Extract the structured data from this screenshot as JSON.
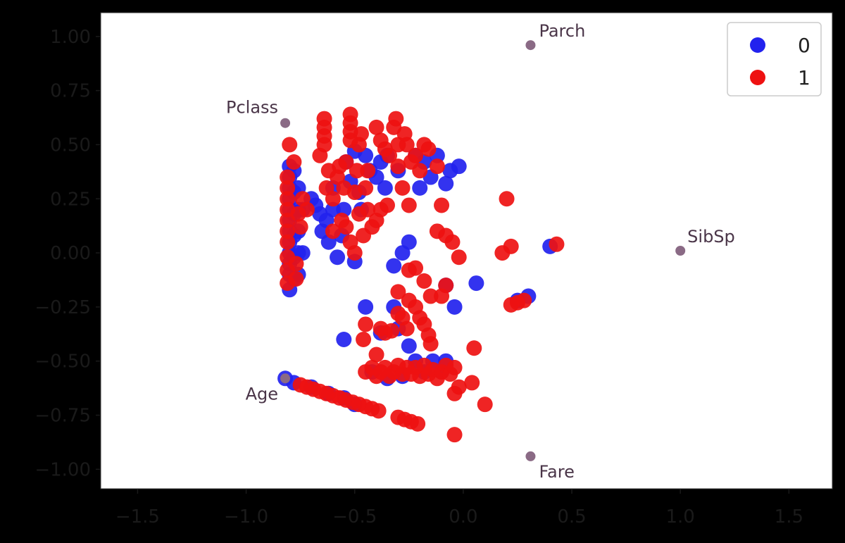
{
  "chart_data": {
    "type": "scatter",
    "title": "",
    "xlabel": "",
    "ylabel": "",
    "xlim": [
      -1.67,
      1.7
    ],
    "ylim": [
      -1.09,
      1.11
    ],
    "xticks": [
      -1.5,
      -1.0,
      -0.5,
      0.0,
      0.5,
      1.0,
      1.5
    ],
    "xtick_labels": [
      "−1.5",
      "−1.0",
      "−0.5",
      "0.0",
      "0.5",
      "1.0",
      "1.5"
    ],
    "yticks": [
      1.0,
      0.75,
      0.5,
      0.25,
      0.0,
      -0.25,
      -0.5,
      -0.75,
      -1.0
    ],
    "ytick_labels": [
      "1.00",
      "0.75",
      "0.50",
      "0.25",
      "0.00",
      "−0.25",
      "−0.50",
      "−0.75",
      "−1.00"
    ],
    "grid": false,
    "legend_position": "top-right",
    "series": [
      {
        "name": "0",
        "color": "#2222ee",
        "points": [
          [
            -0.8,
            0.4
          ],
          [
            -0.8,
            0.35
          ],
          [
            -0.8,
            0.3
          ],
          [
            -0.8,
            0.25
          ],
          [
            -0.8,
            0.2
          ],
          [
            -0.8,
            0.15
          ],
          [
            -0.8,
            0.1
          ],
          [
            -0.8,
            0.05
          ],
          [
            -0.8,
            0.0
          ],
          [
            -0.8,
            -0.05
          ],
          [
            -0.8,
            -0.1
          ],
          [
            -0.8,
            -0.17
          ],
          [
            -0.78,
            0.38
          ],
          [
            -0.78,
            0.28
          ],
          [
            -0.78,
            0.18
          ],
          [
            -0.78,
            0.08
          ],
          [
            -0.78,
            -0.02
          ],
          [
            -0.78,
            -0.12
          ],
          [
            -0.76,
            0.3
          ],
          [
            -0.76,
            0.2
          ],
          [
            -0.76,
            0.1
          ],
          [
            -0.76,
            0.0
          ],
          [
            -0.76,
            -0.1
          ],
          [
            -0.74,
            0.0
          ],
          [
            -0.74,
            0.2
          ],
          [
            -0.7,
            0.25
          ],
          [
            -0.68,
            0.22
          ],
          [
            -0.66,
            0.18
          ],
          [
            -0.65,
            0.1
          ],
          [
            -0.63,
            0.15
          ],
          [
            -0.62,
            0.05
          ],
          [
            -0.6,
            0.2
          ],
          [
            -0.6,
            0.3
          ],
          [
            -0.58,
            -0.02
          ],
          [
            -0.56,
            0.08
          ],
          [
            -0.55,
            0.2
          ],
          [
            -0.54,
            0.42
          ],
          [
            -0.52,
            0.33
          ],
          [
            -0.5,
            -0.04
          ],
          [
            -0.5,
            0.47
          ],
          [
            -0.48,
            0.28
          ],
          [
            -0.47,
            0.2
          ],
          [
            -0.45,
            0.45
          ],
          [
            -0.43,
            0.38
          ],
          [
            -0.4,
            0.35
          ],
          [
            -0.38,
            0.42
          ],
          [
            -0.36,
            0.3
          ],
          [
            -0.35,
            0.45
          ],
          [
            -0.32,
            -0.06
          ],
          [
            -0.3,
            0.38
          ],
          [
            -0.28,
            0.0
          ],
          [
            -0.25,
            0.05
          ],
          [
            -0.22,
            0.45
          ],
          [
            -0.2,
            0.3
          ],
          [
            -0.18,
            0.42
          ],
          [
            -0.15,
            0.35
          ],
          [
            -0.12,
            0.45
          ],
          [
            -0.08,
            0.32
          ],
          [
            -0.06,
            0.38
          ],
          [
            -0.02,
            0.4
          ],
          [
            -0.08,
            -0.15
          ],
          [
            -0.04,
            -0.25
          ],
          [
            0.06,
            -0.14
          ],
          [
            0.25,
            -0.22
          ],
          [
            0.3,
            -0.2
          ],
          [
            0.4,
            0.03
          ],
          [
            -0.55,
            -0.4
          ],
          [
            -0.45,
            -0.25
          ],
          [
            -0.42,
            -0.55
          ],
          [
            -0.38,
            -0.37
          ],
          [
            -0.35,
            -0.58
          ],
          [
            -0.32,
            -0.25
          ],
          [
            -0.3,
            -0.35
          ],
          [
            -0.28,
            -0.57
          ],
          [
            -0.25,
            -0.43
          ],
          [
            -0.22,
            -0.5
          ],
          [
            -0.18,
            -0.55
          ],
          [
            -0.14,
            -0.5
          ],
          [
            -0.1,
            -0.55
          ],
          [
            -0.08,
            -0.5
          ],
          [
            -0.82,
            -0.58
          ],
          [
            -0.78,
            -0.6
          ],
          [
            -0.7,
            -0.62
          ],
          [
            -0.62,
            -0.65
          ],
          [
            -0.55,
            -0.67
          ],
          [
            -0.5,
            -0.7
          ]
        ]
      },
      {
        "name": "1",
        "color": "#ee1111",
        "points": [
          [
            -0.81,
            0.35
          ],
          [
            -0.81,
            0.3
          ],
          [
            -0.81,
            0.25
          ],
          [
            -0.81,
            0.2
          ],
          [
            -0.81,
            0.15
          ],
          [
            -0.81,
            0.1
          ],
          [
            -0.81,
            0.05
          ],
          [
            -0.81,
            -0.02
          ],
          [
            -0.81,
            -0.08
          ],
          [
            -0.81,
            -0.14
          ],
          [
            -0.8,
            0.5
          ],
          [
            -0.78,
            0.42
          ],
          [
            -0.77,
            -0.05
          ],
          [
            -0.77,
            -0.12
          ],
          [
            -0.76,
            0.18
          ],
          [
            -0.75,
            0.12
          ],
          [
            -0.74,
            0.25
          ],
          [
            -0.72,
            0.2
          ],
          [
            -0.66,
            0.45
          ],
          [
            -0.64,
            0.62
          ],
          [
            -0.64,
            0.58
          ],
          [
            -0.64,
            0.54
          ],
          [
            -0.64,
            0.5
          ],
          [
            -0.63,
            0.3
          ],
          [
            -0.62,
            0.38
          ],
          [
            -0.6,
            0.25
          ],
          [
            -0.6,
            0.1
          ],
          [
            -0.58,
            0.35
          ],
          [
            -0.57,
            0.4
          ],
          [
            -0.56,
            0.15
          ],
          [
            -0.55,
            0.3
          ],
          [
            -0.54,
            0.12
          ],
          [
            -0.54,
            0.42
          ],
          [
            -0.52,
            0.64
          ],
          [
            -0.52,
            0.6
          ],
          [
            -0.52,
            0.56
          ],
          [
            -0.52,
            0.52
          ],
          [
            -0.52,
            0.05
          ],
          [
            -0.5,
            0.28
          ],
          [
            -0.5,
            0.0
          ],
          [
            -0.49,
            0.38
          ],
          [
            -0.48,
            0.18
          ],
          [
            -0.48,
            0.5
          ],
          [
            -0.47,
            0.55
          ],
          [
            -0.46,
            0.08
          ],
          [
            -0.45,
            0.3
          ],
          [
            -0.44,
            0.2
          ],
          [
            -0.44,
            0.38
          ],
          [
            -0.42,
            0.12
          ],
          [
            -0.4,
            0.15
          ],
          [
            -0.4,
            0.58
          ],
          [
            -0.38,
            0.52
          ],
          [
            -0.38,
            0.2
          ],
          [
            -0.36,
            0.48
          ],
          [
            -0.35,
            0.22
          ],
          [
            -0.34,
            0.45
          ],
          [
            -0.32,
            0.58
          ],
          [
            -0.31,
            0.62
          ],
          [
            -0.3,
            0.5
          ],
          [
            -0.3,
            0.4
          ],
          [
            -0.28,
            0.3
          ],
          [
            -0.27,
            0.55
          ],
          [
            -0.26,
            0.5
          ],
          [
            -0.25,
            0.22
          ],
          [
            -0.24,
            0.42
          ],
          [
            -0.22,
            0.45
          ],
          [
            -0.2,
            0.38
          ],
          [
            -0.18,
            0.5
          ],
          [
            -0.16,
            0.48
          ],
          [
            -0.12,
            0.4
          ],
          [
            -0.1,
            0.22
          ],
          [
            -0.12,
            0.1
          ],
          [
            -0.08,
            0.08
          ],
          [
            -0.05,
            0.05
          ],
          [
            -0.02,
            -0.02
          ],
          [
            -0.22,
            -0.07
          ],
          [
            -0.25,
            -0.08
          ],
          [
            -0.18,
            -0.13
          ],
          [
            -0.15,
            -0.2
          ],
          [
            -0.1,
            -0.2
          ],
          [
            -0.08,
            -0.15
          ],
          [
            -0.3,
            -0.18
          ],
          [
            -0.3,
            -0.28
          ],
          [
            -0.28,
            -0.3
          ],
          [
            -0.26,
            -0.35
          ],
          [
            -0.25,
            -0.22
          ],
          [
            -0.22,
            -0.25
          ],
          [
            -0.2,
            -0.3
          ],
          [
            -0.18,
            -0.33
          ],
          [
            -0.16,
            -0.38
          ],
          [
            -0.15,
            -0.42
          ],
          [
            -0.45,
            -0.33
          ],
          [
            -0.46,
            -0.4
          ],
          [
            -0.4,
            -0.47
          ],
          [
            -0.38,
            -0.35
          ],
          [
            -0.36,
            -0.37
          ],
          [
            -0.33,
            -0.36
          ],
          [
            -0.45,
            -0.55
          ],
          [
            -0.42,
            -0.53
          ],
          [
            -0.4,
            -0.57
          ],
          [
            -0.38,
            -0.55
          ],
          [
            -0.36,
            -0.53
          ],
          [
            -0.34,
            -0.57
          ],
          [
            -0.32,
            -0.55
          ],
          [
            -0.3,
            -0.52
          ],
          [
            -0.28,
            -0.56
          ],
          [
            -0.26,
            -0.53
          ],
          [
            -0.24,
            -0.56
          ],
          [
            -0.22,
            -0.53
          ],
          [
            -0.2,
            -0.57
          ],
          [
            -0.18,
            -0.52
          ],
          [
            -0.16,
            -0.56
          ],
          [
            -0.14,
            -0.54
          ],
          [
            -0.12,
            -0.58
          ],
          [
            -0.1,
            -0.55
          ],
          [
            -0.08,
            -0.52
          ],
          [
            -0.06,
            -0.56
          ],
          [
            -0.04,
            -0.53
          ],
          [
            -0.02,
            -0.62
          ],
          [
            0.04,
            -0.6
          ],
          [
            0.05,
            -0.44
          ],
          [
            -0.04,
            -0.65
          ],
          [
            0.1,
            -0.7
          ],
          [
            -0.04,
            -0.84
          ],
          [
            0.2,
            0.25
          ],
          [
            0.18,
            0.0
          ],
          [
            0.22,
            0.03
          ],
          [
            0.43,
            0.04
          ],
          [
            0.22,
            -0.24
          ],
          [
            0.25,
            -0.23
          ],
          [
            0.28,
            -0.22
          ],
          [
            -0.75,
            -0.61
          ],
          [
            -0.72,
            -0.62
          ],
          [
            -0.69,
            -0.63
          ],
          [
            -0.66,
            -0.64
          ],
          [
            -0.63,
            -0.65
          ],
          [
            -0.6,
            -0.66
          ],
          [
            -0.57,
            -0.67
          ],
          [
            -0.54,
            -0.68
          ],
          [
            -0.51,
            -0.69
          ],
          [
            -0.48,
            -0.7
          ],
          [
            -0.45,
            -0.71
          ],
          [
            -0.42,
            -0.72
          ],
          [
            -0.39,
            -0.73
          ],
          [
            -0.3,
            -0.76
          ],
          [
            -0.27,
            -0.77
          ],
          [
            -0.24,
            -0.78
          ],
          [
            -0.21,
            -0.79
          ]
        ]
      }
    ],
    "annotations": [
      {
        "label": "Parch",
        "x": 0.31,
        "y": 0.96
      },
      {
        "label": "Pclass",
        "x": -0.82,
        "y": 0.6
      },
      {
        "label": "SibSp",
        "x": 1.0,
        "y": 0.01
      },
      {
        "label": "Age",
        "x": -0.82,
        "y": -0.58
      },
      {
        "label": "Fare",
        "x": 0.31,
        "y": -0.94
      }
    ],
    "annotation_color": "#8a6a85"
  }
}
